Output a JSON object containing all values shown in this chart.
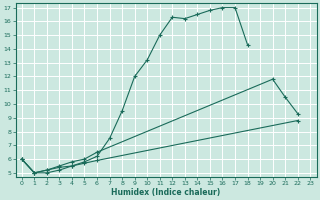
{
  "xlabel": "Humidex (Indice chaleur)",
  "ylabel": "",
  "xlim": [
    -0.5,
    23.5
  ],
  "ylim": [
    4.7,
    17.3
  ],
  "xticks": [
    0,
    1,
    2,
    3,
    4,
    5,
    6,
    7,
    8,
    9,
    10,
    11,
    12,
    13,
    14,
    15,
    16,
    17,
    18,
    19,
    20,
    21,
    22,
    23
  ],
  "yticks": [
    5,
    6,
    7,
    8,
    9,
    10,
    11,
    12,
    13,
    14,
    15,
    16,
    17
  ],
  "bg_color": "#cce8e0",
  "grid_color": "#b0d8d0",
  "line_color": "#1a6b5a",
  "line1": {
    "x": [
      0,
      1,
      2,
      3,
      4,
      5,
      6,
      7,
      8,
      9,
      10,
      11,
      12,
      13,
      14,
      15,
      16,
      17,
      18
    ],
    "y": [
      6.0,
      5.0,
      5.0,
      5.2,
      5.5,
      5.8,
      6.2,
      7.5,
      9.5,
      12.0,
      13.2,
      15.0,
      16.3,
      16.2,
      16.5,
      16.8,
      17.0,
      17.0,
      14.3
    ]
  },
  "line2": {
    "x": [
      0,
      1,
      2,
      3,
      4,
      5,
      6,
      20,
      21,
      22
    ],
    "y": [
      6.0,
      5.0,
      5.2,
      5.5,
      5.8,
      6.0,
      6.5,
      11.8,
      10.5,
      9.3
    ]
  },
  "line3": {
    "x": [
      0,
      1,
      2,
      3,
      4,
      5,
      6,
      22
    ],
    "y": [
      6.0,
      5.0,
      5.2,
      5.4,
      5.5,
      5.7,
      5.9,
      8.8
    ]
  }
}
